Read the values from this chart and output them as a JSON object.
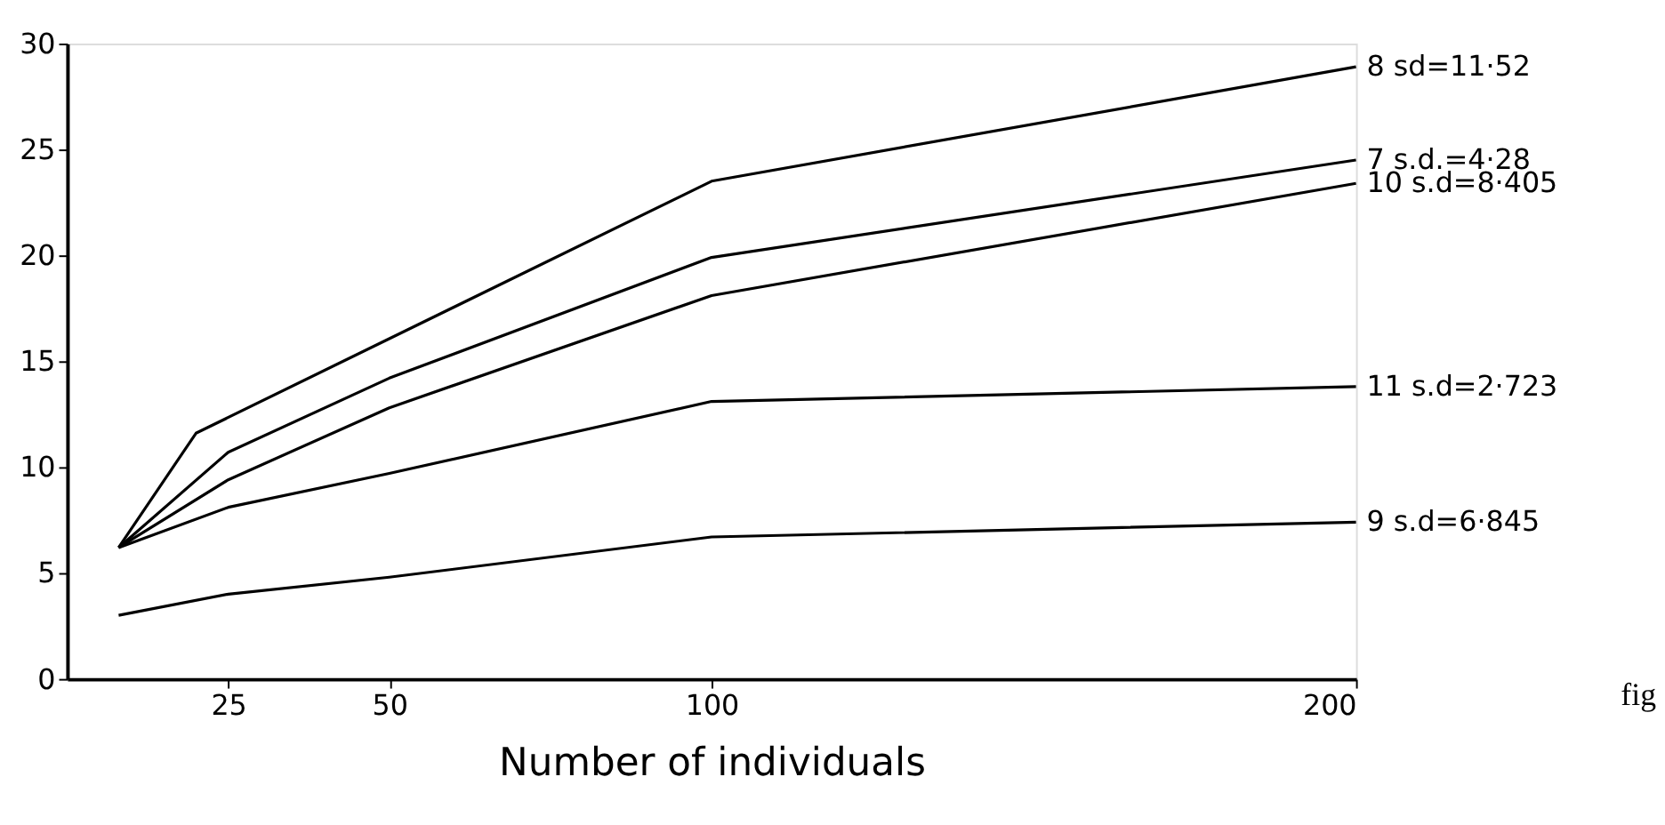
{
  "chart_data": {
    "type": "line",
    "xlabel": "Number of individuals",
    "xlim": [
      0,
      200
    ],
    "xticks": [
      25,
      50,
      100,
      200
    ],
    "ylim": [
      0,
      30
    ],
    "yticks": [
      0,
      5,
      10,
      15,
      20,
      25,
      30
    ],
    "grid": false,
    "legend": false,
    "marker": "none",
    "line_style": "solid",
    "series": [
      {
        "name": "8   sd=11·52",
        "color": "#000000",
        "x": [
          8,
          20,
          100,
          200
        ],
        "values": [
          6.2,
          11.6,
          23.5,
          28.9
        ]
      },
      {
        "name": "7   s.d.=4·28",
        "color": "#000000",
        "x": [
          8,
          25,
          50,
          100,
          200
        ],
        "values": [
          6.2,
          10.7,
          14.2,
          19.9,
          24.5
        ]
      },
      {
        "name": "10  s.d=8·405",
        "color": "#000000",
        "x": [
          8,
          25,
          50,
          100,
          200
        ],
        "values": [
          6.2,
          9.4,
          12.8,
          18.1,
          23.4
        ]
      },
      {
        "name": "11   s.d=2·723",
        "color": "#000000",
        "x": [
          8,
          25,
          50,
          100,
          200
        ],
        "values": [
          6.2,
          8.1,
          9.7,
          13.1,
          13.8
        ]
      },
      {
        "name": "9   s.d=6·845",
        "color": "#000000",
        "x": [
          8,
          25,
          50,
          100,
          200
        ],
        "values": [
          3.0,
          4.0,
          4.8,
          6.7,
          7.4
        ]
      }
    ],
    "annotations": [
      "fig"
    ]
  }
}
